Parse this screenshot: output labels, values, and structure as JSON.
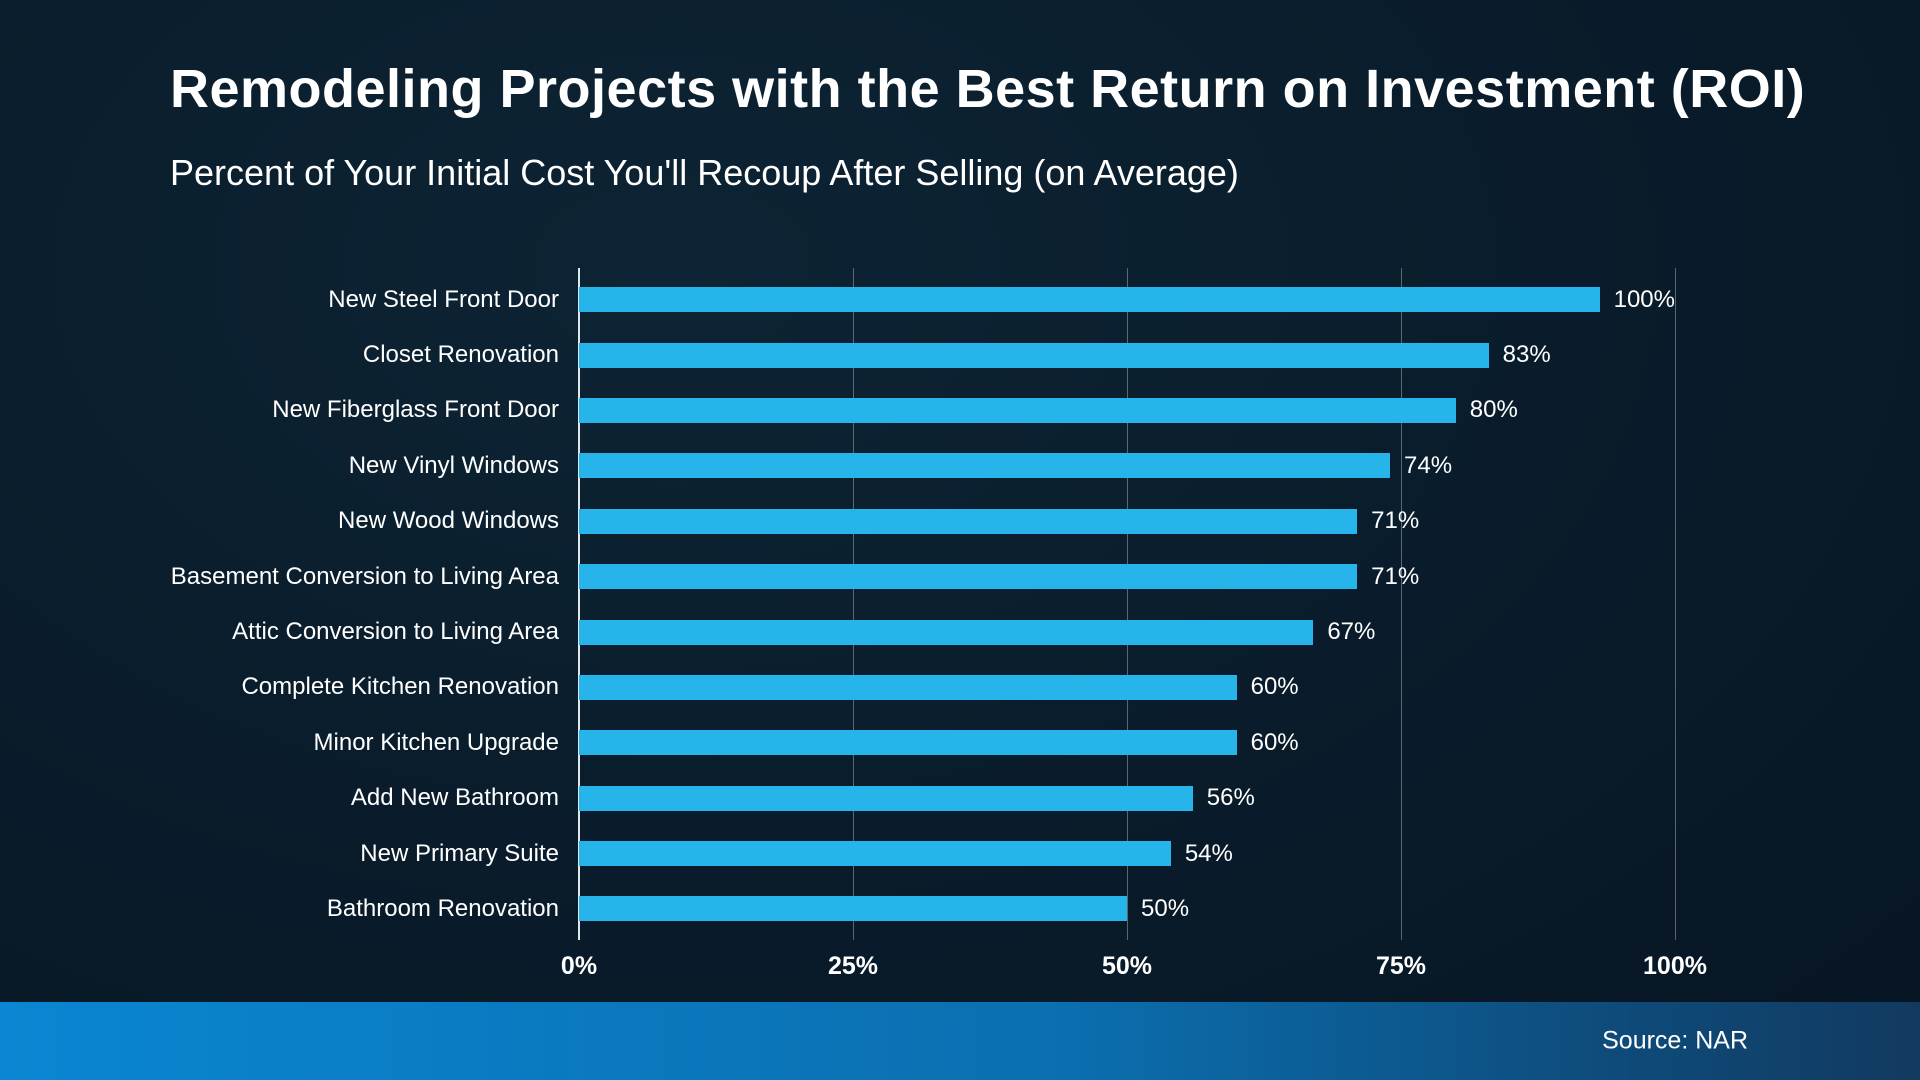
{
  "title": "Remodeling Projects with the Best Return on Investment (ROI)",
  "subtitle": "Percent of Your Initial Cost You'll Recoup After Selling (on Average)",
  "source": "Source: NAR",
  "colors": {
    "bar": "#27b4ea",
    "background": "#0a1d2c",
    "band_left": "#0a86d2",
    "band_right": "#123a5f"
  },
  "chart_data": {
    "type": "bar",
    "orientation": "horizontal",
    "title": "Remodeling Projects with the Best Return on Investment (ROI)",
    "subtitle": "Percent of Your Initial Cost You'll Recoup After Selling (on Average)",
    "categories": [
      "New Steel Front Door",
      "Closet Renovation",
      "New Fiberglass Front Door",
      "New Vinyl Windows",
      "New Wood Windows",
      "Basement Conversion to Living Area",
      "Attic Conversion to Living Area",
      "Complete Kitchen Renovation",
      "Minor Kitchen Upgrade",
      "Add New Bathroom",
      "New Primary Suite",
      "Bathroom Renovation"
    ],
    "values": [
      100,
      83,
      80,
      74,
      71,
      71,
      67,
      60,
      60,
      56,
      54,
      50
    ],
    "value_suffix": "%",
    "xlabel": "",
    "ylabel": "",
    "xlim": [
      0,
      100
    ],
    "x_ticks": [
      "0%",
      "25%",
      "50%",
      "75%",
      "100%"
    ],
    "grid": true,
    "legend": false
  }
}
